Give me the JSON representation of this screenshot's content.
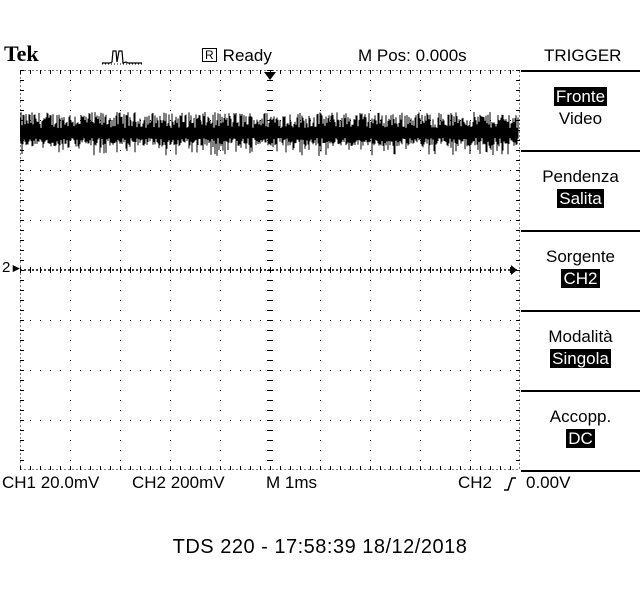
{
  "header": {
    "brand": "Tek",
    "acq_icon": "acquisition-pulse-icon",
    "status_box": "R",
    "status": "Ready",
    "mpos": "M Pos: 0.000s",
    "trigger_title": "TRIGGER"
  },
  "menu": [
    {
      "label": "Fronte",
      "value": "Video",
      "inverted": "label"
    },
    {
      "label": "Pendenza",
      "value": "Salita",
      "inverted": "value"
    },
    {
      "label": "Sorgente",
      "value": "CH2",
      "inverted": "value"
    },
    {
      "label": "Modalità",
      "value": "Singola",
      "inverted": "value"
    },
    {
      "label": "Accopp.",
      "value": "DC",
      "inverted": "value"
    }
  ],
  "readouts": {
    "ch1_scale": "CH1 20.0mV",
    "ch2_scale": "CH2 200mV",
    "timebase": "M 1ms",
    "trig_src": "CH2",
    "trig_slope_icon": "rising-edge-icon",
    "trig_level": "0.00V"
  },
  "markers": {
    "ch2_ground": "2"
  },
  "footer": "TDS 220 - 17:58:39   18/12/2018",
  "colors": {
    "trace": "#000000",
    "background": "#ffffff"
  }
}
